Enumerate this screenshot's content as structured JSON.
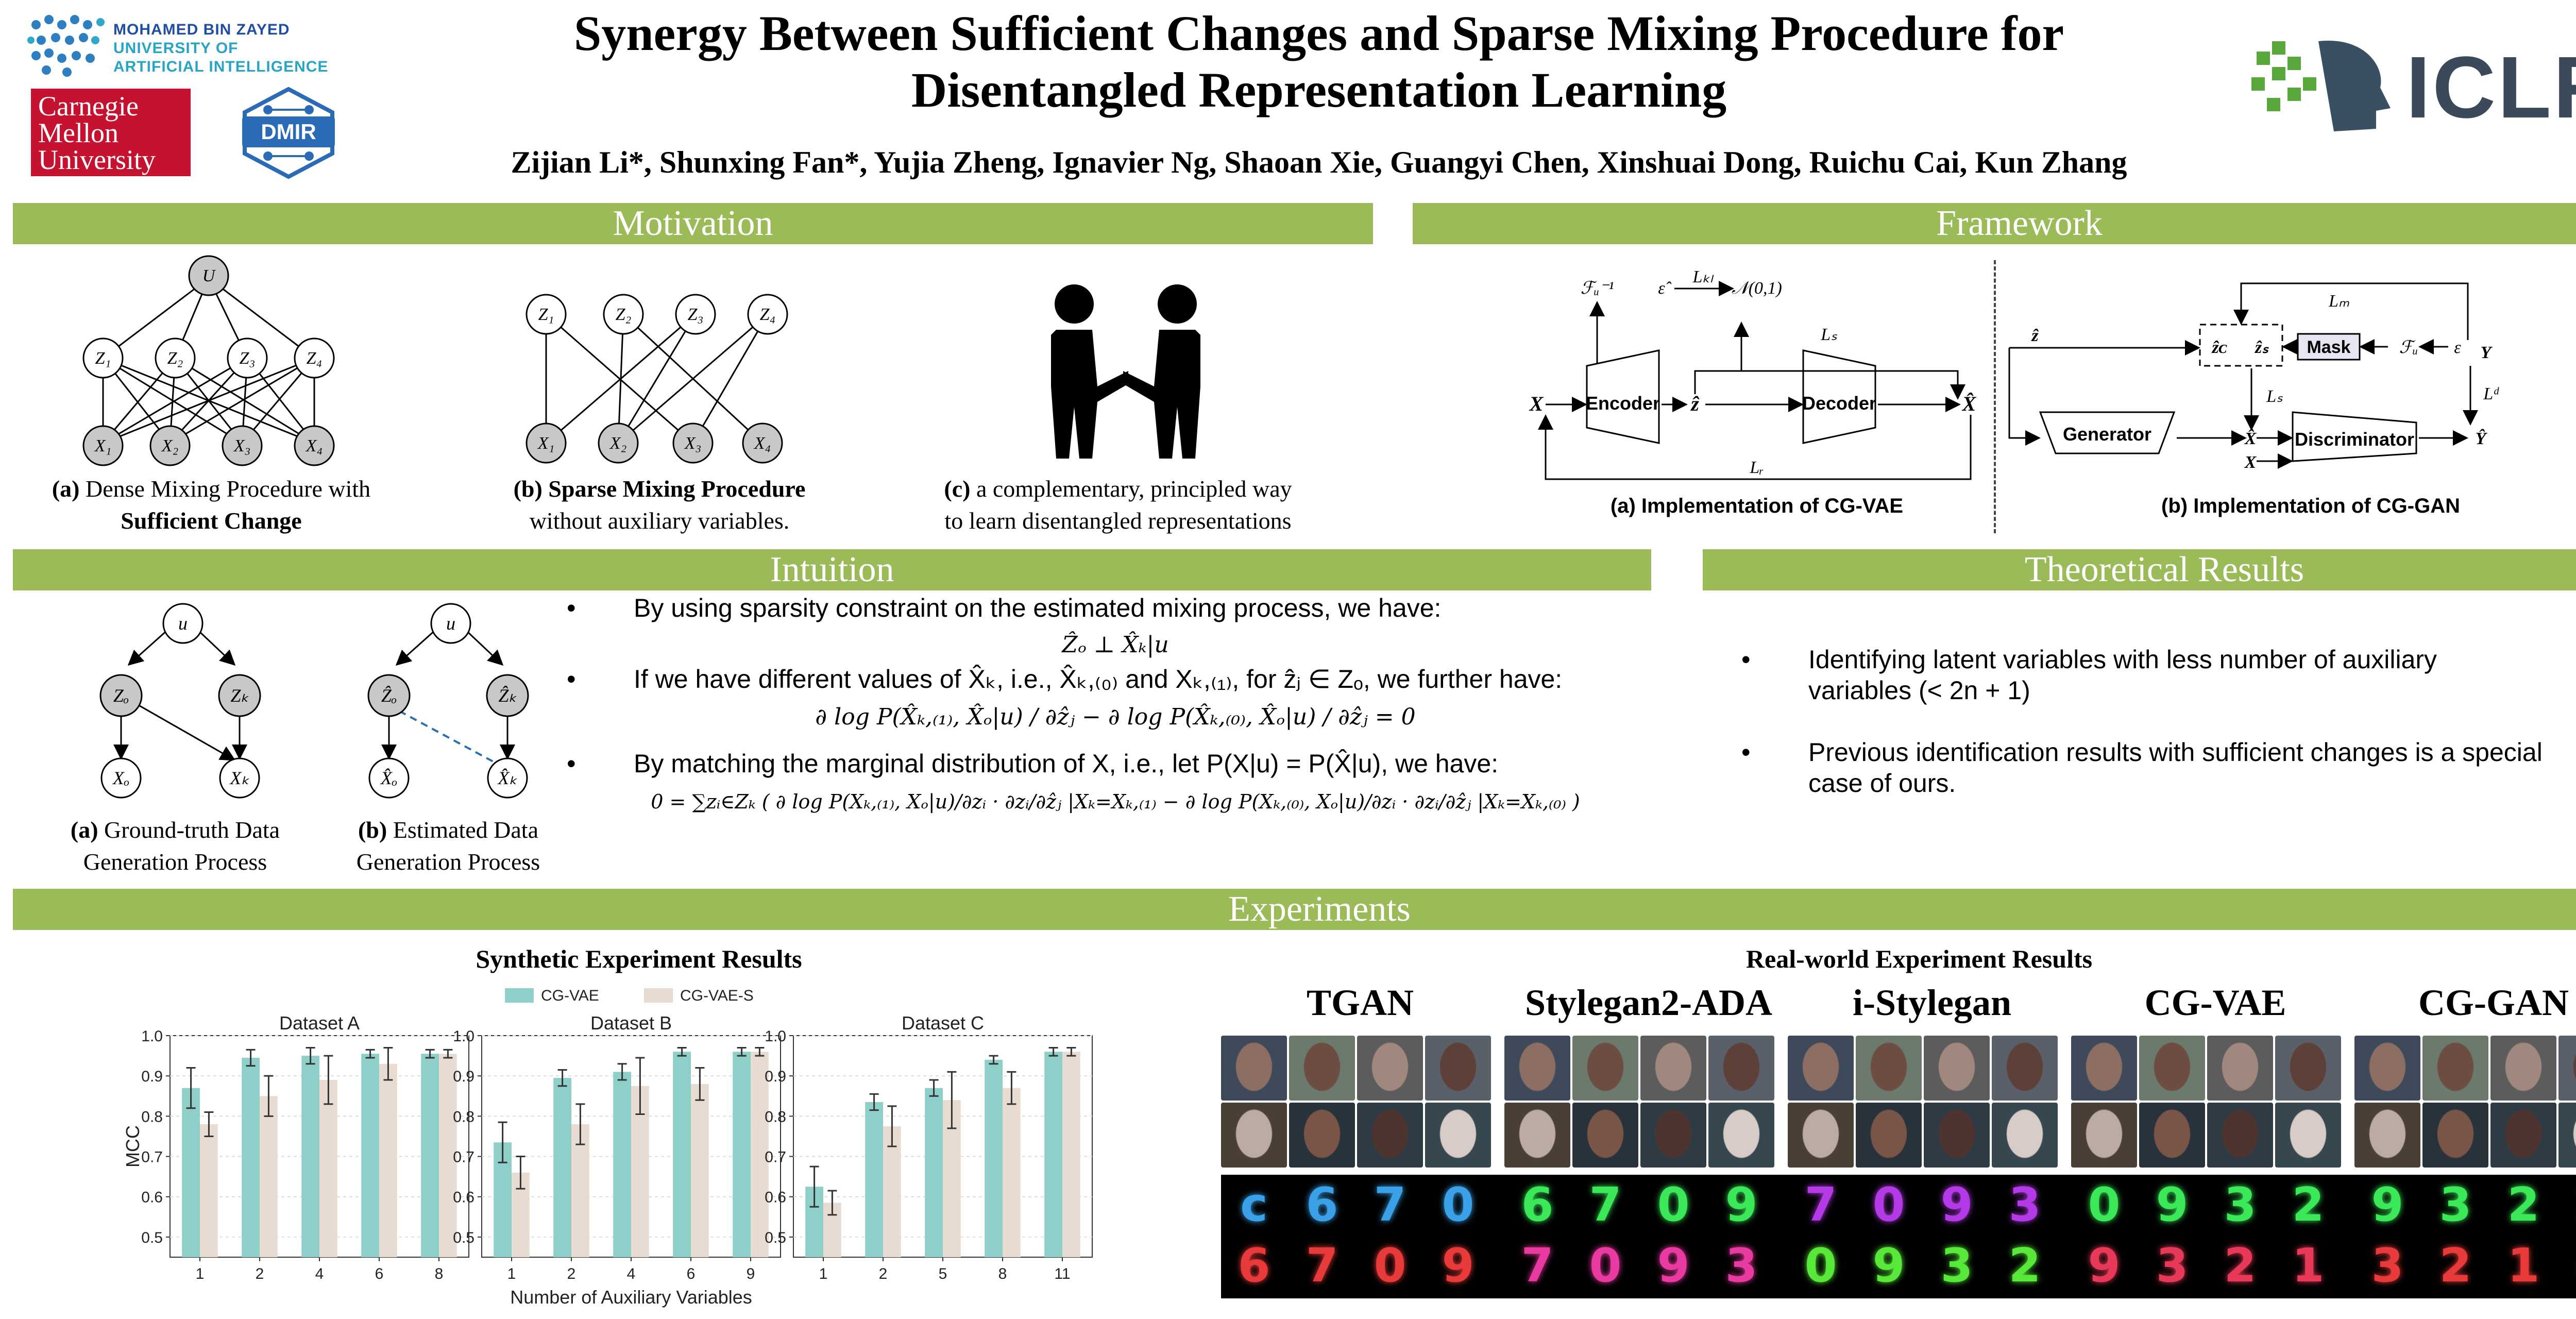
{
  "header": {
    "title_line1": "Synergy Between Sufficient Changes and Sparse Mixing Procedure for",
    "title_line2": "Disentangled Representation Learning",
    "authors": "Zijian Li*, Shunxing Fan*, Yujia Zheng, Ignavier Ng, Shaoan Xie, Guangyi Chen, Xinshuai Dong, Ruichu Cai, Kun Zhang",
    "mbzuai_line1": "MOHAMED BIN ZAYED",
    "mbzuai_line2": "UNIVERSITY OF",
    "mbzuai_line3": "ARTIFICIAL INTELLIGENCE",
    "cmu_line1": "Carnegie",
    "cmu_line2": "Mellon",
    "cmu_line3": "University",
    "dmir": "DMIR",
    "iclr": "ICLR"
  },
  "sections": {
    "motivation": "Motivation",
    "framework": "Framework",
    "intuition": "Intuition",
    "theory": "Theoretical Results",
    "experiments": "Experiments"
  },
  "motivation": {
    "cap_a_bold": "(a)",
    "cap_a_text": " Dense Mixing Procedure with",
    "cap_a_line2": "Sufficient Change",
    "cap_b_bold": "(b) Sparse Mixing Procedure",
    "cap_b_line2": "without auxiliary variables.",
    "cap_c_bold": "(c)",
    "cap_c_text": " a complementary, principled way",
    "cap_c_line2": "to learn disentangled representations",
    "u": "U",
    "z1": "Z₁",
    "z2": "Z₂",
    "z3": "Z₃",
    "z4": "Z₄",
    "x1": "X₁",
    "x2": "X₂",
    "x3": "X₃",
    "x4": "X₄"
  },
  "framework": {
    "cap_a": "(a) Implementation of CG-VAE",
    "cap_b": "(b) Implementation of CG-GAN",
    "encoder": "Encoder",
    "decoder": "Decoder",
    "generator": "Generator",
    "discriminator": "Discriminator",
    "mask": "Mask",
    "x": "X",
    "zhat": "ẑ",
    "xhat": "X̂",
    "fu_inv": "ℱᵤ⁻¹",
    "ehat": "ε̂",
    "normal": "𝒩(0,1)",
    "lkl": "Lₖₗ",
    "ls": "Lₛ",
    "lr": "Lᵣ",
    "lm": "Lₘ",
    "ld": "Lᵈ",
    "fu": "ℱᵤ",
    "eps": "ε",
    "y": "Y",
    "yhat": "Ŷ",
    "zc": "ẑᴄ",
    "zs": "ẑₛ"
  },
  "intuition": {
    "cap_a_bold": "(a)",
    "cap_a_text": " Ground-truth Data",
    "cap_a_line2": "Generation Process",
    "cap_b_bold": "(b)",
    "cap_b_text": " Estimated Data",
    "cap_b_line2": "Generation Process",
    "u": "u",
    "zo": "Zₒ",
    "zk": "Zₖ",
    "xo": "Xₒ",
    "xk": "Xₖ",
    "zo_hat": "Ẑₒ",
    "zk_hat": "Ẑₖ",
    "xo_hat": "X̂ₒ",
    "xk_hat": "X̂ₖ",
    "b1": "By using sparsity constraint on the estimated mixing process, we have:",
    "eq1": "Ẑₒ ⊥ X̂ₖ|u",
    "b2": "If we have different values of X̂ₖ, i.e., X̂ₖ,₍₀₎ and Xₖ,₍₁₎, for ẑⱼ ∈ Zₒ, we further have:",
    "eq2": "∂ log P(X̂ₖ,₍₁₎, X̂ₒ|u) / ∂ẑⱼ − ∂ log P(X̂ₖ,₍₀₎, X̂ₒ|u) / ∂ẑⱼ = 0",
    "b3": "By matching the marginal distribution of X, i.e., let P(X|u) = P(X̂|u), we have:",
    "eq3": "0 = ∑ᴢᵢ∈Zₖ ( ∂ log P(Xₖ,₍₁₎, Xₒ|u)/∂zᵢ · ∂zᵢ/∂ẑⱼ |Xₖ=Xₖ,₍₁₎ − ∂ log P(Xₖ,₍₀₎, Xₒ|u)/∂zᵢ · ∂zᵢ/∂ẑⱼ |Xₖ=Xₖ,₍₀₎ )"
  },
  "theory": {
    "b1": "Identifying latent variables with less number of auxiliary variables (< 2n + 1)",
    "b2": "Previous identification results with sufficient changes is a special case of ours."
  },
  "experiments": {
    "synthetic_title": "Synthetic Experiment Results",
    "realworld_title": "Real-world Experiment Results",
    "methods": [
      "TGAN",
      "Stylegan2-ADA",
      "i-Stylegan",
      "CG-VAE",
      "CG-GAN"
    ]
  },
  "chart_data": {
    "type": "bar",
    "legend": [
      "CG-VAE",
      "CG-VAE-S"
    ],
    "colors": {
      "CG-VAE": "#8ecfc9",
      "CG-VAE-S": "#e8dcd2"
    },
    "ylabel": "MCC",
    "xlabel": "Number of Auxiliary Variables",
    "ylim": [
      0.45,
      1.0
    ],
    "yticks": [
      "0.5",
      "0.6",
      "0.7",
      "0.8",
      "0.9",
      "1.0"
    ],
    "panels": [
      {
        "title": "Dataset A",
        "categories": [
          "1",
          "2",
          "4",
          "6",
          "8"
        ],
        "series": [
          {
            "name": "CG-VAE",
            "values": [
              0.87,
              0.945,
              0.95,
              0.955,
              0.955
            ],
            "err": [
              0.05,
              0.02,
              0.02,
              0.01,
              0.01
            ]
          },
          {
            "name": "CG-VAE-S",
            "values": [
              0.78,
              0.85,
              0.89,
              0.93,
              0.955
            ],
            "err": [
              0.03,
              0.05,
              0.06,
              0.04,
              0.01
            ]
          }
        ]
      },
      {
        "title": "Dataset B",
        "categories": [
          "1",
          "2",
          "4",
          "6",
          "9"
        ],
        "series": [
          {
            "name": "CG-VAE",
            "values": [
              0.735,
              0.895,
              0.91,
              0.96,
              0.96
            ],
            "err": [
              0.05,
              0.02,
              0.02,
              0.01,
              0.01
            ]
          },
          {
            "name": "CG-VAE-S",
            "values": [
              0.66,
              0.78,
              0.875,
              0.88,
              0.96
            ],
            "err": [
              0.04,
              0.05,
              0.07,
              0.04,
              0.01
            ]
          }
        ]
      },
      {
        "title": "Dataset C",
        "categories": [
          "1",
          "2",
          "5",
          "8",
          "11"
        ],
        "series": [
          {
            "name": "CG-VAE",
            "values": [
              0.625,
              0.835,
              0.87,
              0.94,
              0.96
            ],
            "err": [
              0.05,
              0.02,
              0.02,
              0.01,
              0.01
            ]
          },
          {
            "name": "CG-VAE-S",
            "values": [
              0.585,
              0.775,
              0.84,
              0.87,
              0.96
            ],
            "err": [
              0.03,
              0.05,
              0.07,
              0.04,
              0.01
            ]
          }
        ]
      }
    ]
  }
}
